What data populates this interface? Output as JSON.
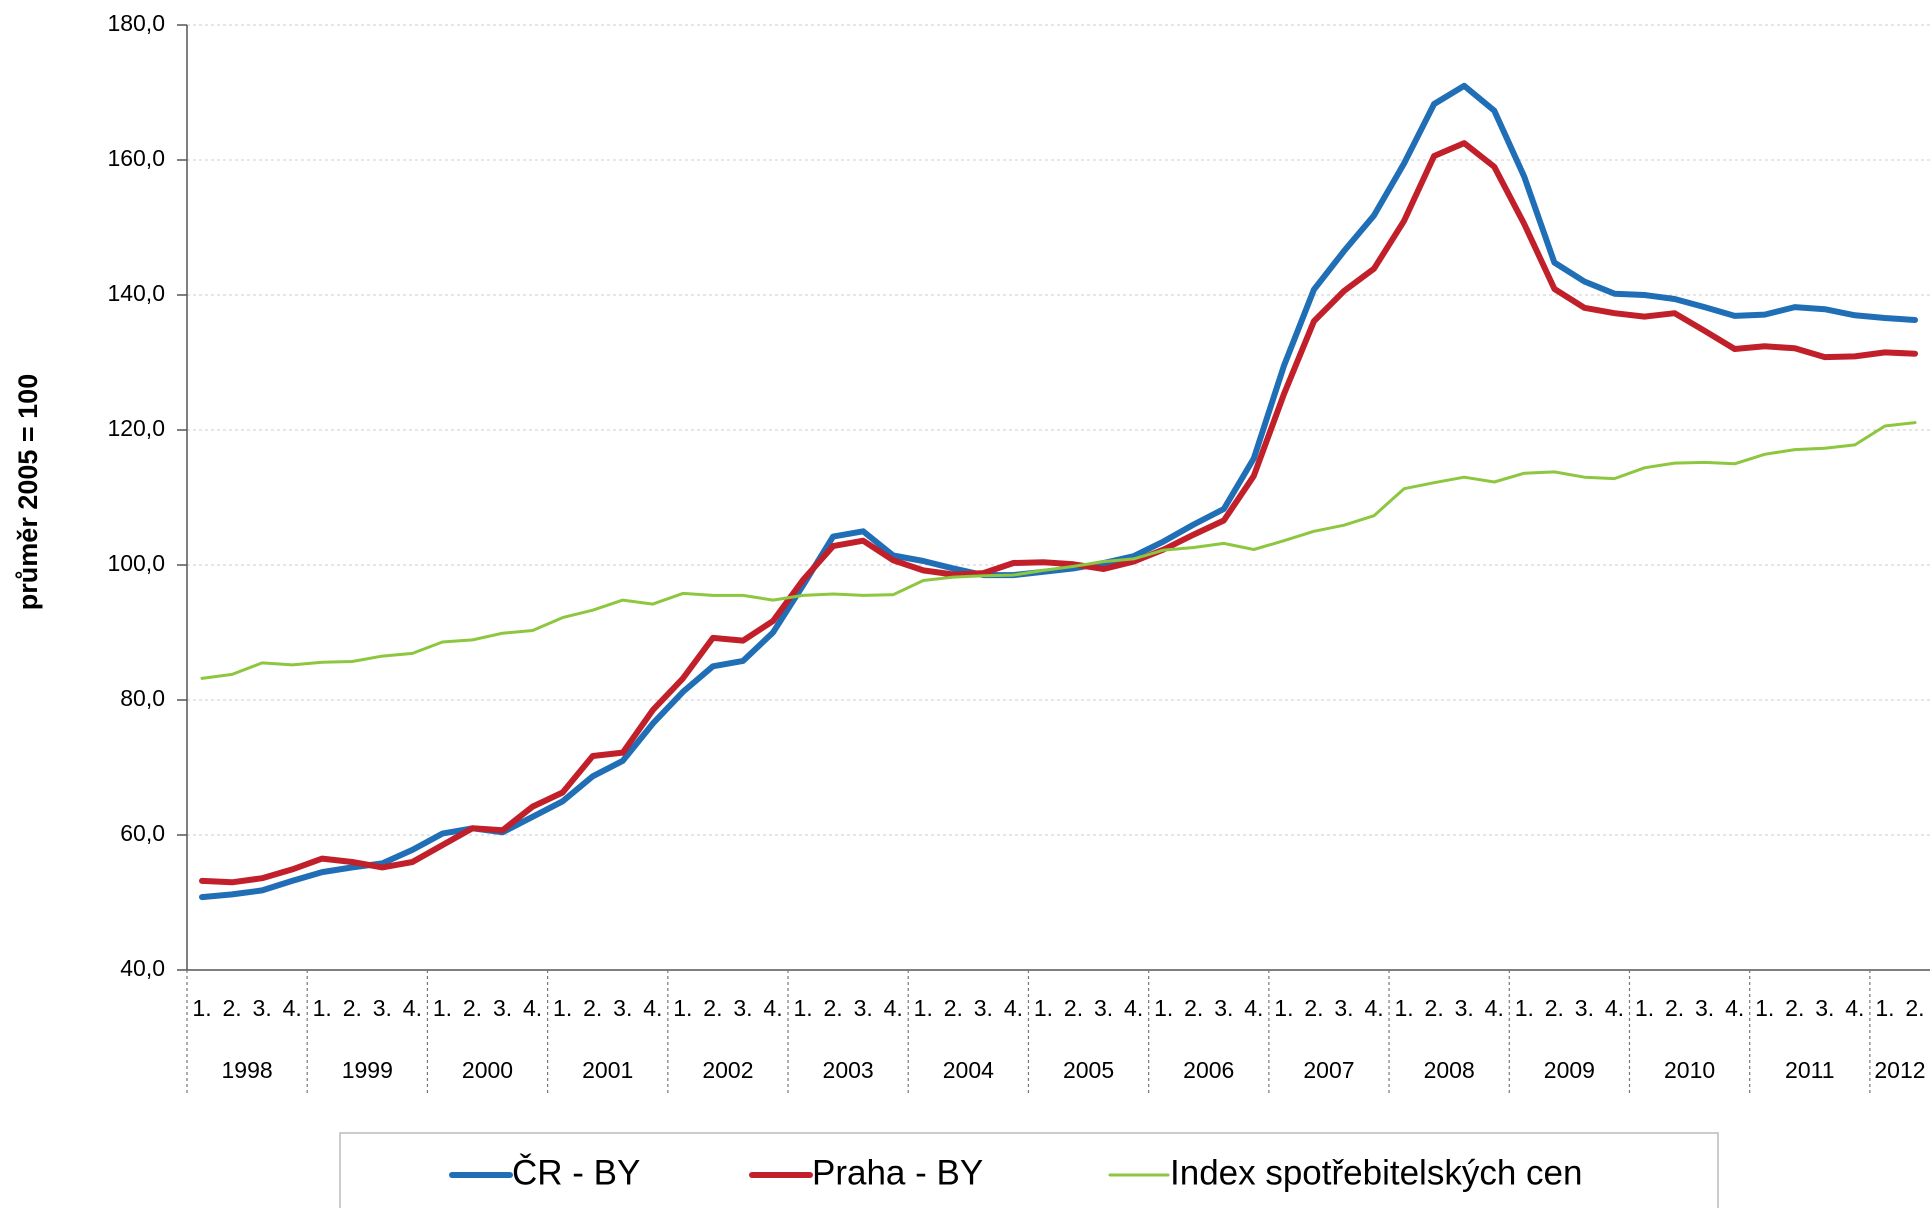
{
  "chart_data": {
    "type": "line",
    "y_label": "průměr 2005 = 100",
    "categories": [
      "1.",
      "2.",
      "3.",
      "4.",
      "1.",
      "2.",
      "3.",
      "4.",
      "1.",
      "2.",
      "3.",
      "4.",
      "1.",
      "2.",
      "3.",
      "4.",
      "1.",
      "2.",
      "3.",
      "4.",
      "1.",
      "2.",
      "3.",
      "4.",
      "1.",
      "2.",
      "3.",
      "4.",
      "1.",
      "2.",
      "3.",
      "4.",
      "1.",
      "2.",
      "3.",
      "4.",
      "1.",
      "2.",
      "3.",
      "4.",
      "1.",
      "2.",
      "3.",
      "4.",
      "1.",
      "2.",
      "3.",
      "4.",
      "1.",
      "2.",
      "3.",
      "4.",
      "1.",
      "2.",
      "3.",
      "4.",
      "1.",
      "2."
    ],
    "years": [
      "1998",
      "1999",
      "2000",
      "2001",
      "2002",
      "2003",
      "2004",
      "2005",
      "2006",
      "2007",
      "2008",
      "2009",
      "2010",
      "2011",
      "2012"
    ],
    "ylim": [
      40,
      180
    ],
    "yticks": [
      {
        "value": 40,
        "label": "40,0"
      },
      {
        "value": 60,
        "label": "60,0"
      },
      {
        "value": 80,
        "label": "80,0"
      },
      {
        "value": 100,
        "label": "100,0"
      },
      {
        "value": 120,
        "label": "120,0"
      },
      {
        "value": 140,
        "label": "140,0"
      },
      {
        "value": 160,
        "label": "160,0"
      },
      {
        "value": 180,
        "label": "180,0"
      }
    ],
    "grid": true,
    "series": [
      {
        "name": "ČR - BY",
        "color": "#1f6eb6",
        "width": 6,
        "values": [
          50.8,
          51.2,
          51.8,
          53.2,
          54.5,
          55.2,
          55.8,
          57.8,
          60.2,
          61.0,
          60.4,
          62.7,
          65.0,
          68.7,
          71.0,
          76.5,
          81.2,
          85.0,
          85.8,
          90.0,
          97.0,
          104.2,
          105.0,
          101.4,
          100.6,
          99.5,
          98.5,
          98.5,
          99.0,
          99.5,
          100.3,
          101.3,
          103.5,
          106.0,
          108.3,
          115.8,
          129.5,
          140.8,
          146.5,
          151.8,
          159.5,
          168.3,
          171.0,
          167.3,
          157.5,
          144.8,
          142.0,
          140.2,
          140.0,
          139.4,
          138.2,
          136.9,
          137.1,
          138.2,
          137.9,
          137.0,
          136.6,
          136.3
        ]
      },
      {
        "name": "Praha - BY",
        "color": "#c1202a",
        "width": 6,
        "values": [
          53.2,
          53.0,
          53.6,
          54.9,
          56.5,
          56.0,
          55.2,
          56.0,
          58.5,
          61.0,
          60.7,
          64.2,
          66.3,
          71.7,
          72.2,
          78.5,
          83.2,
          89.2,
          88.8,
          91.7,
          97.8,
          102.8,
          103.6,
          100.7,
          99.2,
          98.6,
          98.8,
          100.3,
          100.4,
          100.1,
          99.4,
          100.5,
          102.3,
          104.5,
          106.6,
          113.2,
          125.3,
          136.1,
          140.6,
          143.9,
          151.0,
          160.6,
          162.5,
          159.0,
          150.5,
          140.9,
          138.1,
          137.3,
          136.8,
          137.3,
          134.7,
          132.0,
          132.4,
          132.1,
          130.8,
          130.9,
          131.5,
          131.3
        ]
      },
      {
        "name": "Index spotřebitelských cen",
        "color": "#8dc63f",
        "width": 3,
        "values": [
          83.2,
          83.8,
          85.5,
          85.2,
          85.6,
          85.7,
          86.5,
          86.9,
          88.6,
          88.9,
          89.9,
          90.3,
          92.2,
          93.3,
          94.8,
          94.2,
          95.8,
          95.5,
          95.5,
          94.8,
          95.5,
          95.7,
          95.5,
          95.6,
          97.7,
          98.2,
          98.4,
          98.5,
          99.2,
          99.8,
          100.5,
          100.9,
          102.2,
          102.6,
          103.2,
          102.3,
          103.6,
          105.0,
          105.9,
          107.3,
          111.3,
          112.2,
          113.0,
          112.3,
          113.6,
          113.8,
          113.0,
          112.8,
          114.4,
          115.1,
          115.2,
          115.0,
          116.4,
          117.1,
          117.3,
          117.8,
          120.6,
          121.1
        ]
      }
    ]
  }
}
